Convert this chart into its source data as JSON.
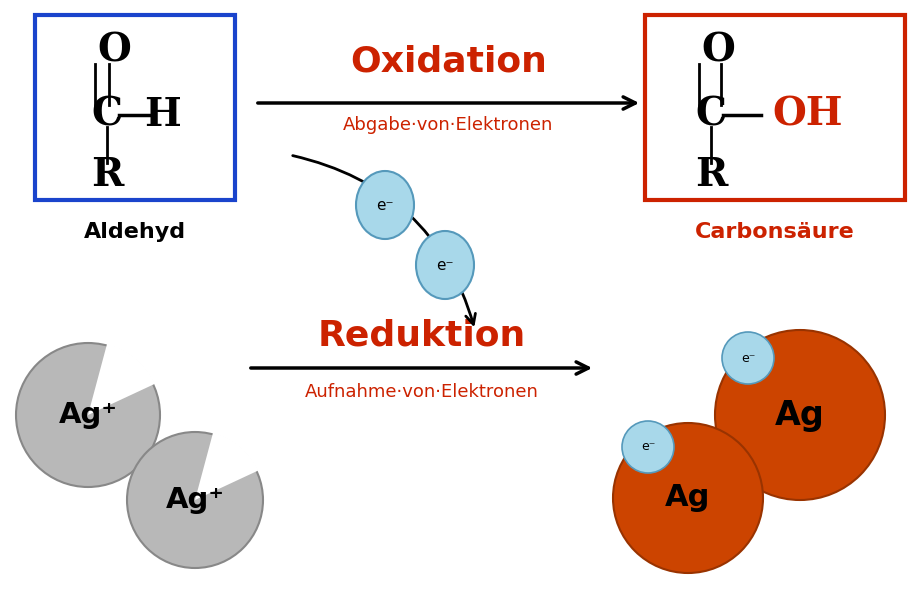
{
  "bg_color": "#ffffff",
  "blue_box_color": "#1a44cc",
  "red_box_color": "#cc2200",
  "red_text_color": "#cc2200",
  "black_text_color": "#000000",
  "silver_color": "#b8b8b8",
  "silver_edge_color": "#888888",
  "orange_color": "#cc4400",
  "orange_edge_color": "#993300",
  "electron_color": "#a8d8ea",
  "electron_edge_color": "#5599bb",
  "oxidation_label": "Oxidation",
  "oxidation_sub": "Abgabe·von·Elektronen",
  "reduktion_label": "Reduktion",
  "reduktion_sub": "Aufnahme·von·Elektronen",
  "aldehyd_label": "Aldehyd",
  "carbonsaeure_label": "Carbonsäure"
}
